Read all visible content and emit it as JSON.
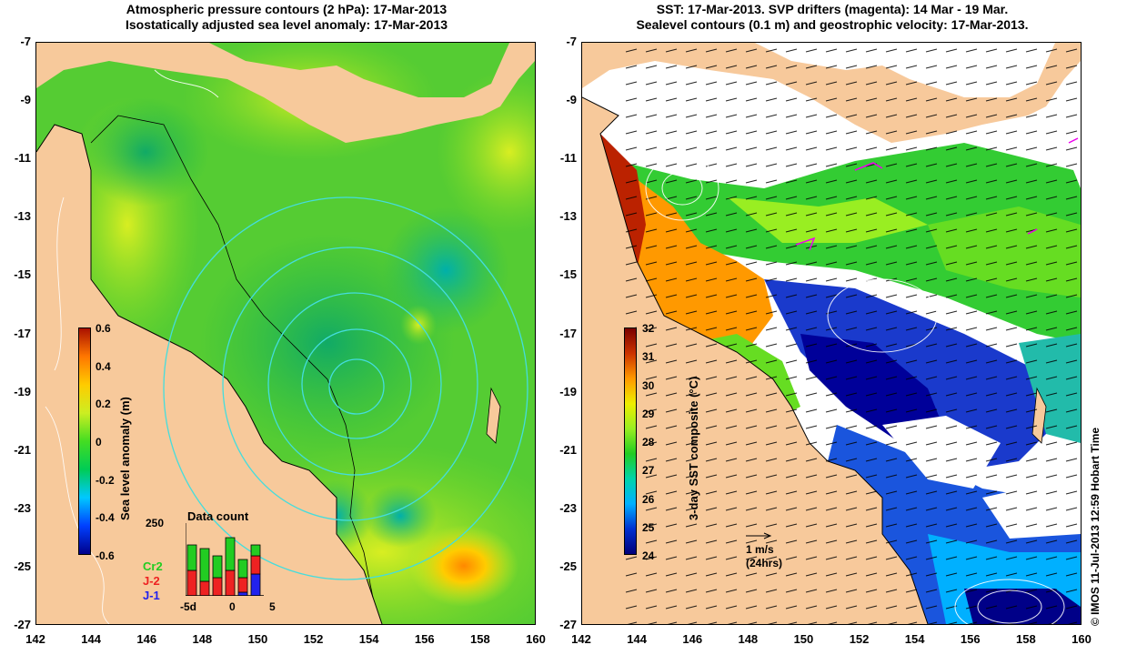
{
  "left_panel": {
    "title_line1": "Atmospheric pressure contours (2 hPa): 17-Mar-2013",
    "title_line2": "Isostatically adjusted sea level anomaly: 17-Mar-2013",
    "colorbar": {
      "label": "Sea level anomaly (m)",
      "ticks": [
        "0.6",
        "0.4",
        "0.2",
        "0",
        "-0.2",
        "-0.4",
        "-0.6"
      ]
    },
    "data_count": {
      "title": "Data count",
      "ymax_label": "250",
      "xticks": [
        "-5d",
        "0",
        "5"
      ],
      "legend": [
        {
          "label": "Cr2",
          "color": "#22cc22"
        },
        {
          "label": "J-2",
          "color": "#ee2222"
        },
        {
          "label": "J-1",
          "color": "#2222ee"
        }
      ],
      "bars": [
        {
          "green": 0.35,
          "red": 0.35,
          "blue": 0
        },
        {
          "green": 0.45,
          "red": 0.2,
          "blue": 0
        },
        {
          "green": 0.3,
          "red": 0.25,
          "blue": 0
        },
        {
          "green": 0.45,
          "red": 0.35,
          "blue": 0
        },
        {
          "green": 0.25,
          "red": 0.2,
          "blue": 0.05
        },
        {
          "green": 0.15,
          "red": 0.25,
          "blue": 0.3
        }
      ]
    }
  },
  "right_panel": {
    "title_line1": "SST: 17-Mar-2013. SVP drifters (magenta): 14 Mar - 19 Mar.",
    "title_line2": "Sealevel contours (0.1 m) and geostrophic velocity: 17-Mar-2013.",
    "colorbar": {
      "label": "3-day SST composite (°C)",
      "ticks": [
        "32",
        "31",
        "30",
        "29",
        "28",
        "27",
        "26",
        "25",
        "24"
      ]
    },
    "scale_arrow": {
      "line1": "1 m/s",
      "line2": "(24hrs)"
    }
  },
  "axes": {
    "y_ticks": [
      "-7",
      "-9",
      "-11",
      "-13",
      "-15",
      "-17",
      "-19",
      "-21",
      "-23",
      "-25",
      "-27"
    ],
    "x_ticks": [
      "142",
      "144",
      "146",
      "148",
      "150",
      "152",
      "154",
      "156",
      "158",
      "160"
    ]
  },
  "credit": "© IMOS 11-Jul-2013 12:59 Hobart Time",
  "colors": {
    "land": "#f7c99b",
    "sla_ramp": [
      "#00008b",
      "#0040ff",
      "#00c8ff",
      "#00cc55",
      "#44dd22",
      "#ccee22",
      "#ffcc00",
      "#ff7700",
      "#aa1100"
    ],
    "sst_ramp": [
      "#00007a",
      "#0030d0",
      "#00b0ff",
      "#00d4aa",
      "#22cc22",
      "#99ee22",
      "#eeee00",
      "#ff9900",
      "#cc3300",
      "#7a0000"
    ]
  }
}
